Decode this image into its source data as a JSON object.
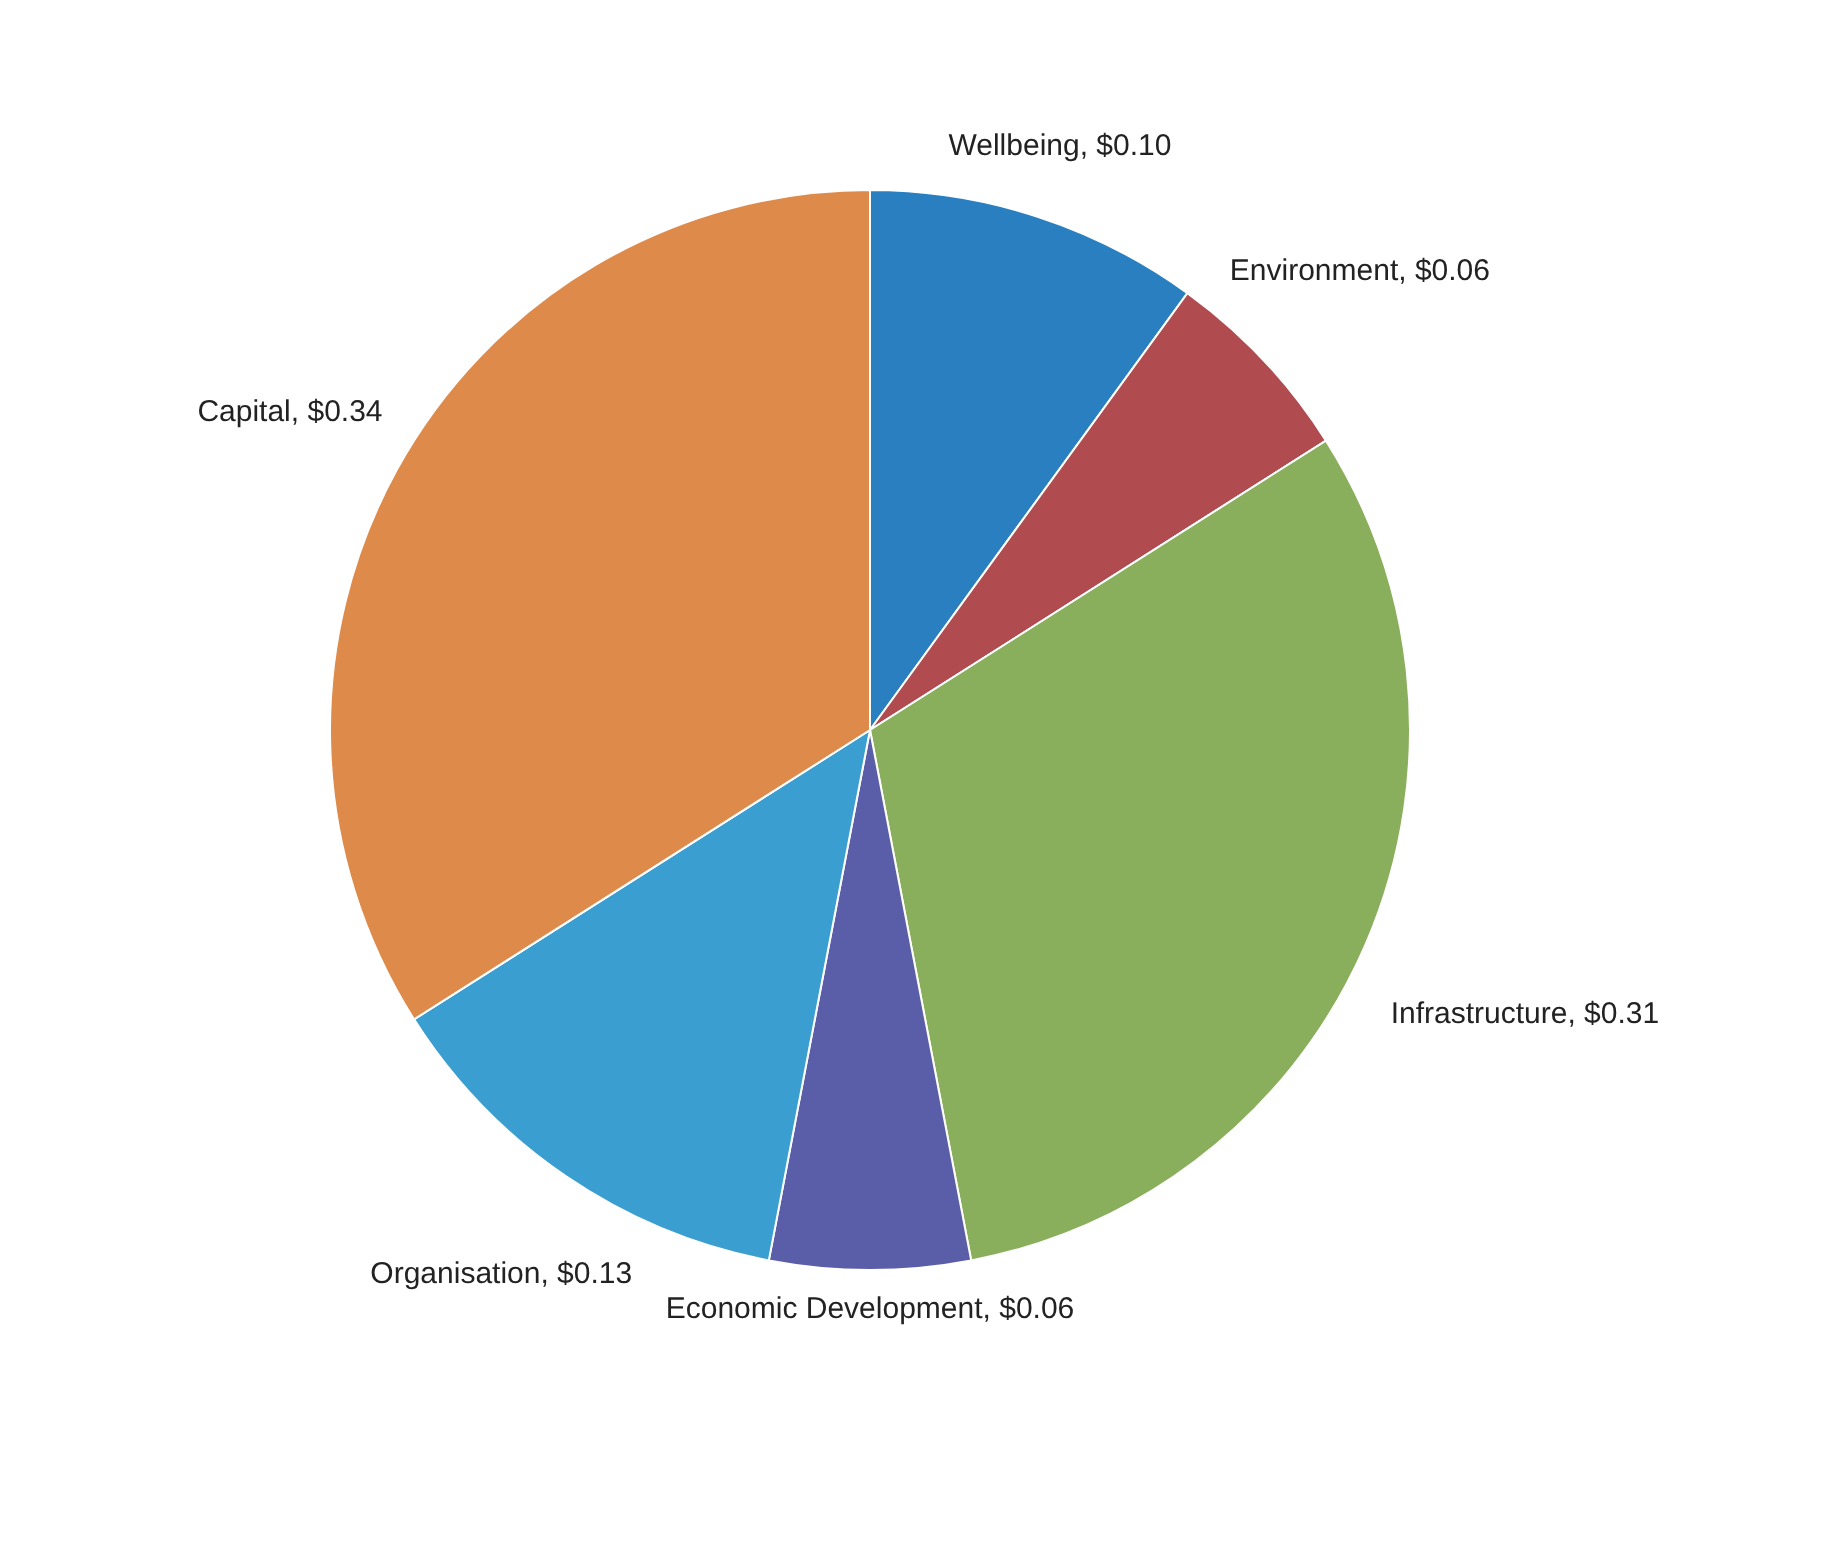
{
  "chart_data": {
    "type": "pie",
    "categories": [
      "Wellbeing",
      "Environment",
      "Infrastructure",
      "Economic Development",
      "Organisation",
      "Capital"
    ],
    "values": [
      0.1,
      0.06,
      0.31,
      0.06,
      0.13,
      0.34
    ],
    "value_labels": [
      "$0.10",
      "$0.06",
      "$0.31",
      "$0.06",
      "$0.13",
      "$0.34"
    ],
    "colors": [
      "#2a7fc0",
      "#b04c50",
      "#8aaf5c",
      "#5a5ea8",
      "#3a9fd0",
      "#dd8a4a"
    ],
    "legend": false
  }
}
